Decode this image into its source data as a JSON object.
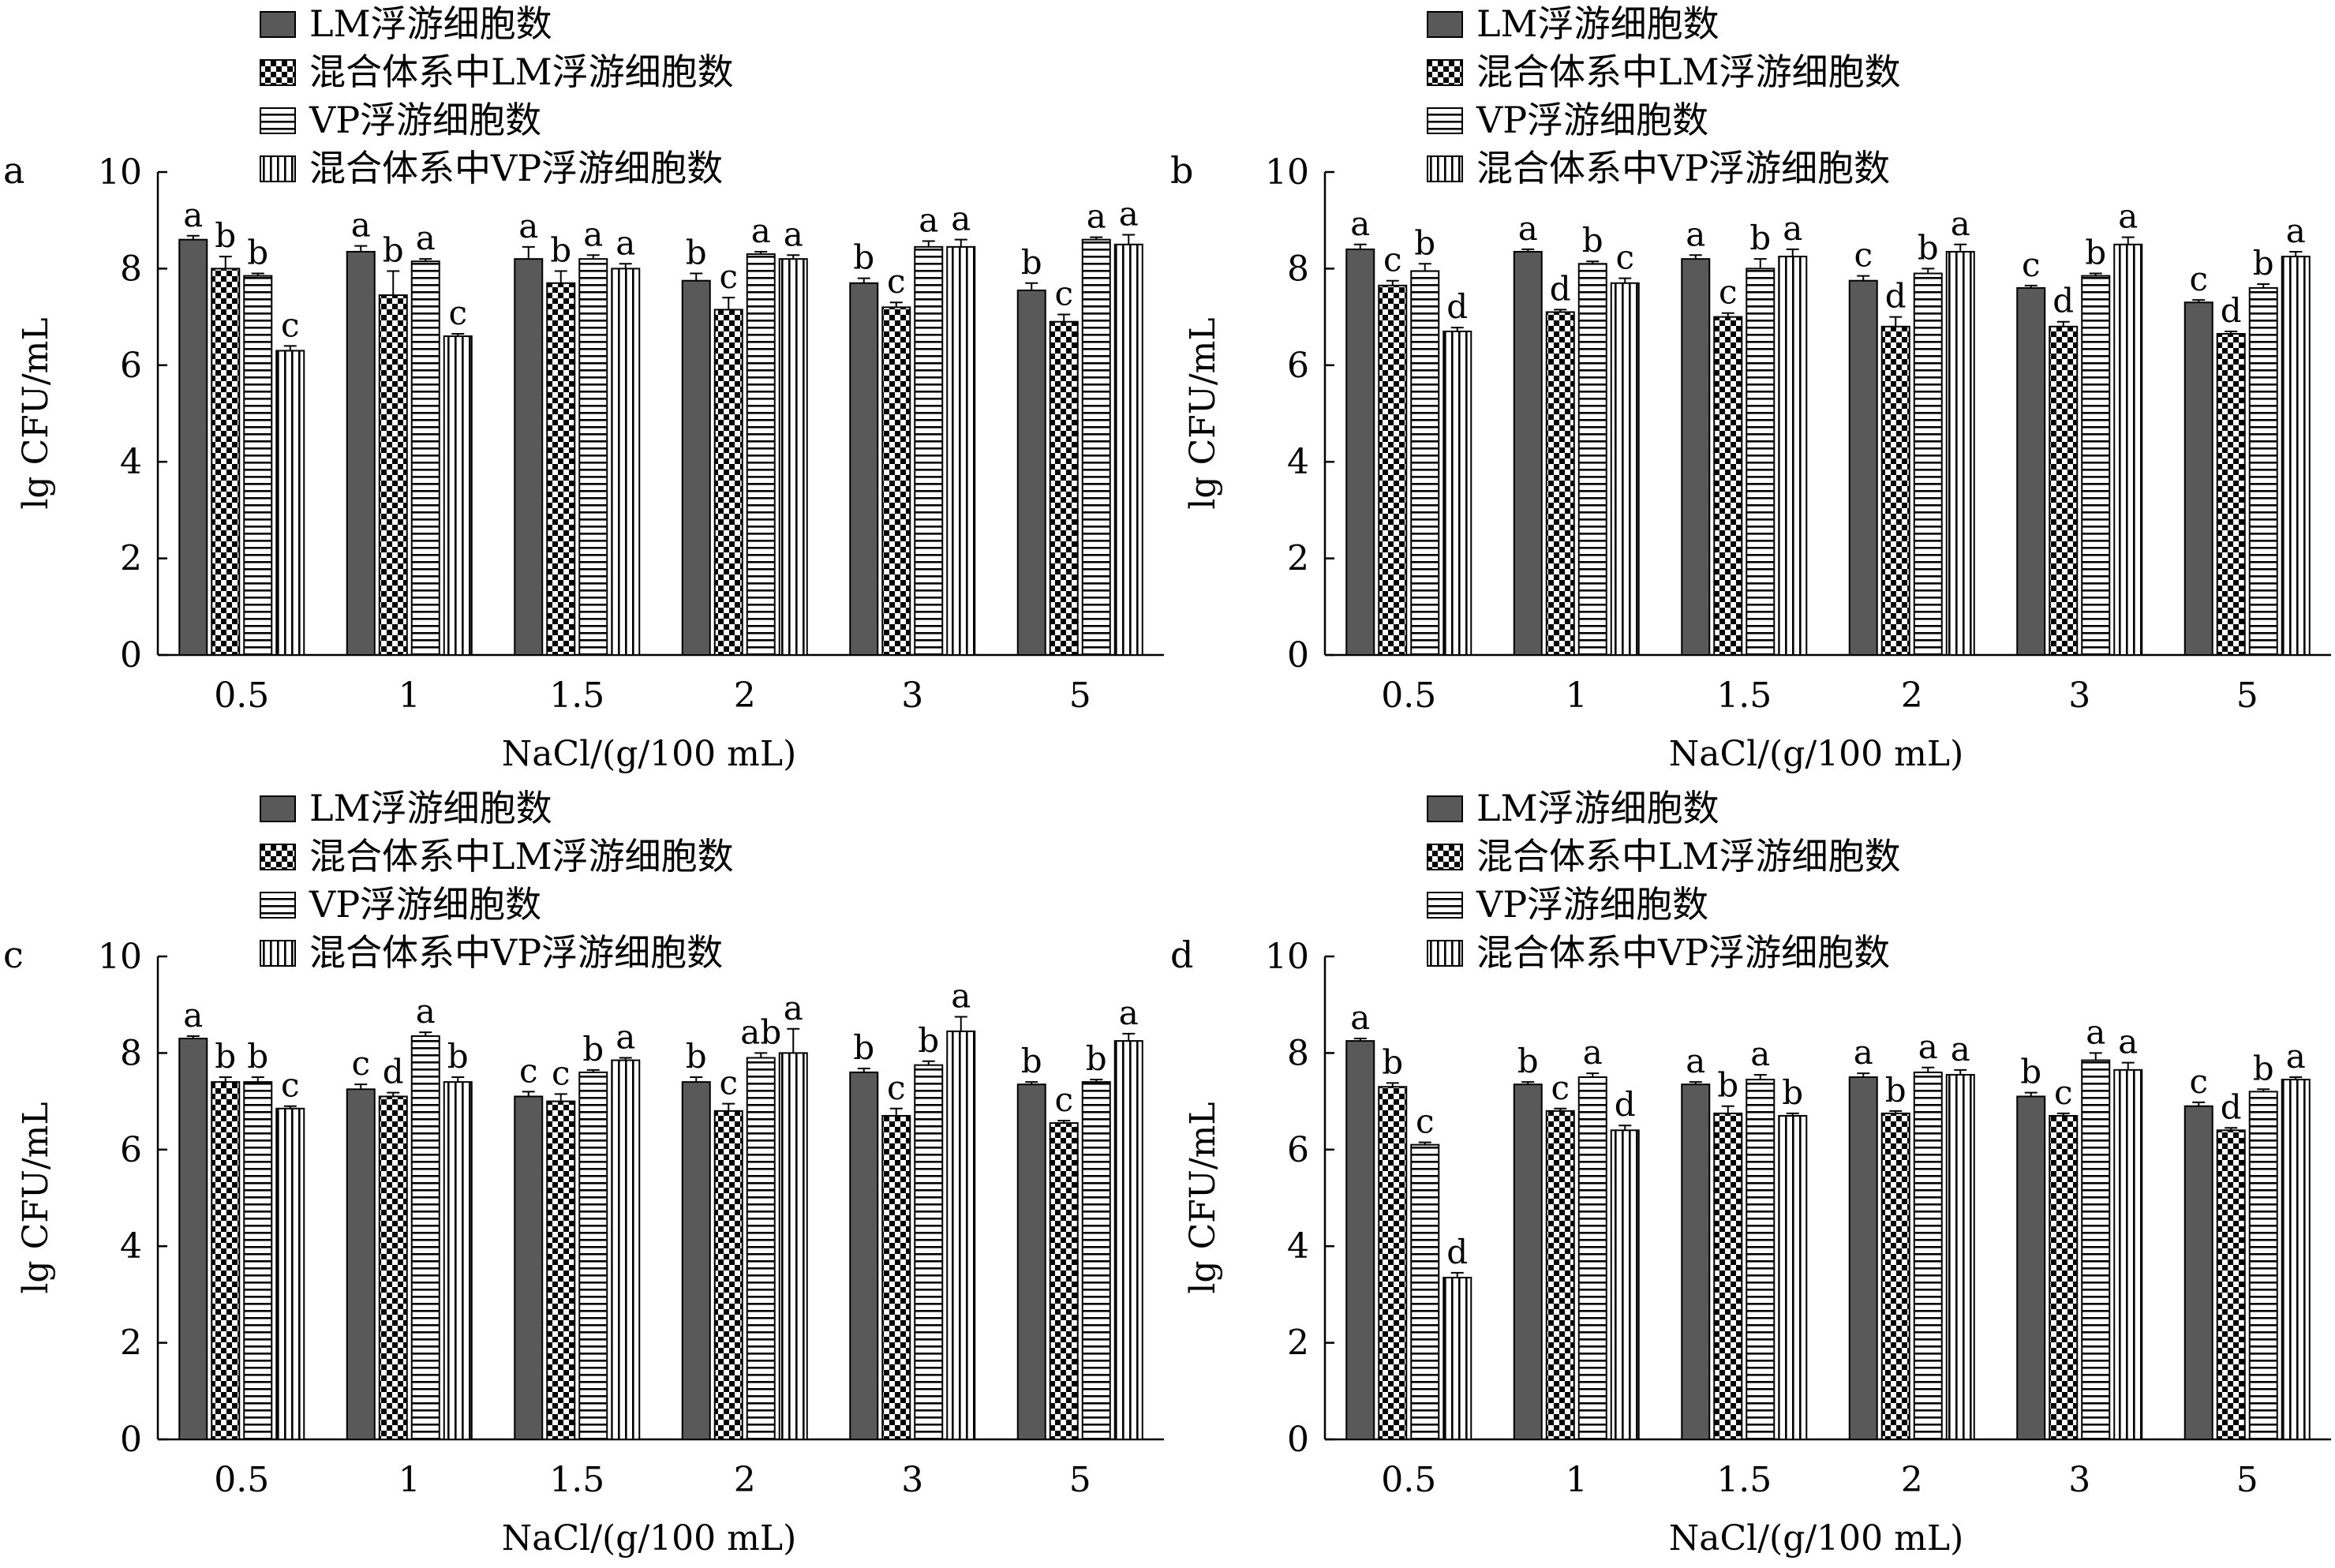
{
  "colors": {
    "lm_fill": "#595959",
    "axis": "#000000",
    "pattern_ink": "#000000",
    "background": "#ffffff"
  },
  "legend_entries": [
    "LM浮游细胞数",
    "混合体系中LM浮游细胞数",
    "VP浮游细胞数",
    "混合体系中VP浮游细胞数"
  ],
  "legend_patterns": [
    "solid-gray",
    "checkerboard",
    "horizontal-stripes",
    "vertical-stripes"
  ],
  "chart_data": [
    {
      "panel": "a",
      "type": "bar",
      "xlabel": "NaCl/(g/100 mL)",
      "ylabel": "lg CFU/mL",
      "ylim": [
        0,
        10
      ],
      "yticks": [
        0,
        2,
        4,
        6,
        8,
        10
      ],
      "categories": [
        "0.5",
        "1",
        "1.5",
        "2",
        "3",
        "5"
      ],
      "series": [
        {
          "name": "LM浮游细胞数",
          "values": [
            8.6,
            8.35,
            8.2,
            7.75,
            7.7,
            7.55
          ],
          "errors": [
            0.08,
            0.12,
            0.25,
            0.15,
            0.1,
            0.15
          ],
          "letters": [
            "a",
            "a",
            "a",
            "b",
            "b",
            "b"
          ]
        },
        {
          "name": "混合体系中LM浮游细胞数",
          "values": [
            8.0,
            7.45,
            7.7,
            7.15,
            7.2,
            6.9
          ],
          "errors": [
            0.25,
            0.5,
            0.25,
            0.25,
            0.1,
            0.15
          ],
          "letters": [
            "b",
            "b",
            "b",
            "c",
            "c",
            "c"
          ]
        },
        {
          "name": "VP浮游细胞数",
          "values": [
            7.85,
            8.15,
            8.2,
            8.3,
            8.45,
            8.6
          ],
          "errors": [
            0.05,
            0.05,
            0.08,
            0.05,
            0.12,
            0.05
          ],
          "letters": [
            "b",
            "a",
            "a",
            "a",
            "a",
            "a"
          ]
        },
        {
          "name": "混合体系中VP浮游细胞数",
          "values": [
            6.3,
            6.6,
            8.0,
            8.2,
            8.45,
            8.5
          ],
          "errors": [
            0.1,
            0.05,
            0.1,
            0.08,
            0.15,
            0.2
          ],
          "letters": [
            "c",
            "c",
            "a",
            "a",
            "a",
            "a"
          ]
        }
      ]
    },
    {
      "panel": "b",
      "type": "bar",
      "xlabel": "NaCl/(g/100 mL)",
      "ylabel": "lg CFU/mL",
      "ylim": [
        0,
        10
      ],
      "yticks": [
        0,
        2,
        4,
        6,
        8,
        10
      ],
      "categories": [
        "0.5",
        "1",
        "1.5",
        "2",
        "3",
        "5"
      ],
      "series": [
        {
          "name": "LM浮游细胞数",
          "values": [
            8.4,
            8.35,
            8.2,
            7.75,
            7.6,
            7.3
          ],
          "errors": [
            0.1,
            0.05,
            0.08,
            0.1,
            0.05,
            0.05
          ],
          "letters": [
            "a",
            "a",
            "a",
            "c",
            "c",
            "c"
          ]
        },
        {
          "name": "混合体系中LM浮游细胞数",
          "values": [
            7.65,
            7.1,
            7.0,
            6.8,
            6.8,
            6.65
          ],
          "errors": [
            0.1,
            0.05,
            0.08,
            0.2,
            0.1,
            0.05
          ],
          "letters": [
            "c",
            "d",
            "c",
            "d",
            "d",
            "d"
          ]
        },
        {
          "name": "VP浮游细胞数",
          "values": [
            7.95,
            8.1,
            8.0,
            7.9,
            7.85,
            7.6
          ],
          "errors": [
            0.15,
            0.05,
            0.2,
            0.1,
            0.05,
            0.08
          ],
          "letters": [
            "b",
            "b",
            "b",
            "b",
            "b",
            "b"
          ]
        },
        {
          "name": "混合体系中VP浮游细胞数",
          "values": [
            6.7,
            7.7,
            8.25,
            8.35,
            8.5,
            8.25
          ],
          "errors": [
            0.08,
            0.1,
            0.15,
            0.15,
            0.15,
            0.1
          ],
          "letters": [
            "d",
            "c",
            "a",
            "a",
            "a",
            "a"
          ]
        }
      ]
    },
    {
      "panel": "c",
      "type": "bar",
      "xlabel": "NaCl/(g/100 mL)",
      "ylabel": "lg CFU/mL",
      "ylim": [
        0,
        10
      ],
      "yticks": [
        0,
        2,
        4,
        6,
        8,
        10
      ],
      "categories": [
        "0.5",
        "1",
        "1.5",
        "2",
        "3",
        "5"
      ],
      "series": [
        {
          "name": "LM浮游细胞数",
          "values": [
            8.3,
            7.25,
            7.1,
            7.4,
            7.6,
            7.35
          ],
          "errors": [
            0.05,
            0.1,
            0.1,
            0.1,
            0.08,
            0.05
          ],
          "letters": [
            "a",
            "c",
            "c",
            "b",
            "b",
            "b"
          ]
        },
        {
          "name": "混合体系中LM浮游细胞数",
          "values": [
            7.4,
            7.1,
            7.0,
            6.8,
            6.7,
            6.55
          ],
          "errors": [
            0.1,
            0.08,
            0.15,
            0.15,
            0.15,
            0.05
          ],
          "letters": [
            "b",
            "d",
            "c",
            "c",
            "c",
            "c"
          ]
        },
        {
          "name": "VP浮游细胞数",
          "values": [
            7.4,
            8.35,
            7.6,
            7.9,
            7.75,
            7.4
          ],
          "errors": [
            0.1,
            0.08,
            0.05,
            0.1,
            0.08,
            0.05
          ],
          "letters": [
            "b",
            "a",
            "b",
            "ab",
            "b",
            "b"
          ]
        },
        {
          "name": "混合体系中VP浮游细胞数",
          "values": [
            6.85,
            7.4,
            7.85,
            8.0,
            8.45,
            8.25
          ],
          "errors": [
            0.05,
            0.1,
            0.05,
            0.5,
            0.3,
            0.15
          ],
          "letters": [
            "c",
            "b",
            "a",
            "a",
            "a",
            "a"
          ]
        }
      ]
    },
    {
      "panel": "d",
      "type": "bar",
      "xlabel": "NaCl/(g/100 mL)",
      "ylabel": "lg CFU/mL",
      "ylim": [
        0,
        10
      ],
      "yticks": [
        0,
        2,
        4,
        6,
        8,
        10
      ],
      "categories": [
        "0.5",
        "1",
        "1.5",
        "2",
        "3",
        "5"
      ],
      "series": [
        {
          "name": "LM浮游细胞数",
          "values": [
            8.25,
            7.35,
            7.35,
            7.5,
            7.1,
            6.9
          ],
          "errors": [
            0.05,
            0.05,
            0.05,
            0.08,
            0.08,
            0.08
          ],
          "letters": [
            "a",
            "b",
            "a",
            "a",
            "b",
            "c"
          ]
        },
        {
          "name": "混合体系中LM浮游细胞数",
          "values": [
            7.3,
            6.8,
            6.75,
            6.75,
            6.7,
            6.4
          ],
          "errors": [
            0.08,
            0.05,
            0.15,
            0.05,
            0.05,
            0.05
          ],
          "letters": [
            "b",
            "c",
            "b",
            "b",
            "c",
            "d"
          ]
        },
        {
          "name": "VP浮游细胞数",
          "values": [
            6.1,
            7.5,
            7.45,
            7.6,
            7.85,
            7.2
          ],
          "errors": [
            0.05,
            0.08,
            0.1,
            0.1,
            0.15,
            0.05
          ],
          "letters": [
            "c",
            "a",
            "a",
            "a",
            "a",
            "b"
          ]
        },
        {
          "name": "混合体系中VP浮游细胞数",
          "values": [
            3.35,
            6.4,
            6.7,
            7.55,
            7.65,
            7.45
          ],
          "errors": [
            0.1,
            0.1,
            0.05,
            0.1,
            0.15,
            0.05
          ],
          "letters": [
            "d",
            "d",
            "b",
            "a",
            "a",
            "a"
          ]
        }
      ]
    }
  ]
}
